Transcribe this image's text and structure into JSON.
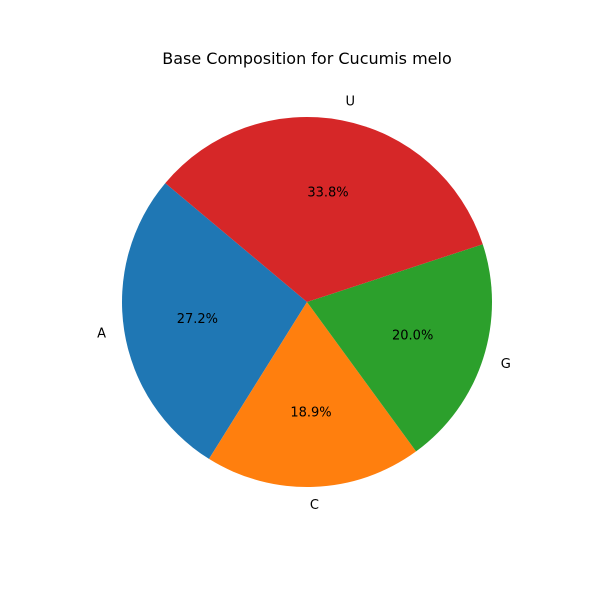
{
  "chart_data": {
    "type": "pie",
    "title": "Base Composition for Cucumis melo",
    "slices": [
      {
        "label": "A",
        "value": 27.2,
        "pct_label": "27.2%",
        "color": "#1f77b4"
      },
      {
        "label": "C",
        "value": 18.9,
        "pct_label": "18.9%",
        "color": "#ff7f0e"
      },
      {
        "label": "G",
        "value": 20.0,
        "pct_label": "20.0%",
        "color": "#2ca02c"
      },
      {
        "label": "U",
        "value": 33.8,
        "pct_label": "33.8%",
        "color": "#d62728"
      }
    ],
    "start_angle_deg": 140,
    "direction": "counterclockwise",
    "legend": "none"
  }
}
